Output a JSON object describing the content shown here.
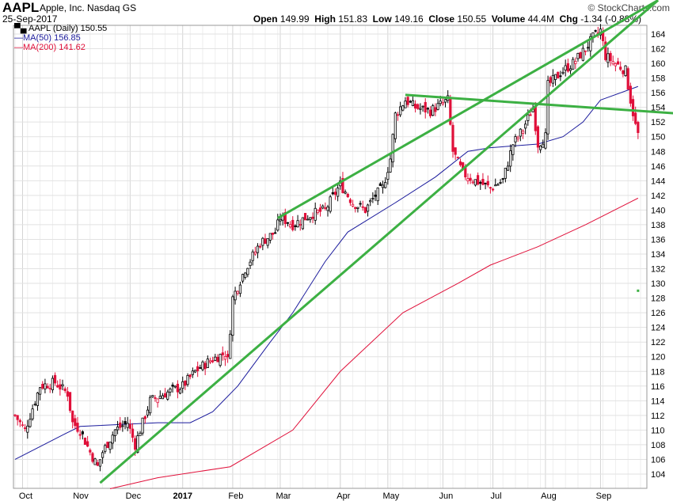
{
  "header": {
    "symbol": "AAPL",
    "company": "Apple, Inc. Nasdaq GS",
    "date": "25-Sep-2017",
    "brand": "© StockCharts.com",
    "open_label": "Open",
    "open": "149.99",
    "high_label": "High",
    "high": "151.83",
    "low_label": "Low",
    "low": "149.16",
    "close_label": "Close",
    "close": "150.55",
    "volume_label": "Volume",
    "volume": "44.4M",
    "chg_label": "Chg",
    "chg": "-1.34 (-0.88%)"
  },
  "legend": {
    "price": "AAPL (Daily) 150.55",
    "ma50": "MA(50) 156.85",
    "ma200": "MA(200) 141.62"
  },
  "colors": {
    "up": "#000000",
    "down": "#e0103a",
    "ma50": "#1a1a9c",
    "ma200": "#e0103a",
    "trend": "#3cb043",
    "grid": "#e2e2e2"
  },
  "chart_data": {
    "type": "candlestick",
    "title": "AAPL (Daily)",
    "ylim": [
      102,
      165.2
    ],
    "y_ticks": [
      104,
      106,
      108,
      110,
      112,
      114,
      116,
      118,
      120,
      122,
      124,
      126,
      128,
      130,
      132,
      134,
      136,
      138,
      140,
      142,
      144,
      146,
      148,
      150,
      152,
      154,
      156,
      158,
      160,
      162,
      164
    ],
    "x_tick_labels": [
      {
        "label": "Oct",
        "day": 3
      },
      {
        "label": "Nov",
        "day": 25
      },
      {
        "label": "Dec",
        "day": 46
      },
      {
        "label": "2017",
        "day": 67
      },
      {
        "label": "Feb",
        "day": 87
      },
      {
        "label": "Mar",
        "day": 106
      },
      {
        "label": "Apr",
        "day": 130
      },
      {
        "label": "May",
        "day": 149
      },
      {
        "label": "Jun",
        "day": 171
      },
      {
        "label": "Jul",
        "day": 191
      },
      {
        "label": "Aug",
        "day": 212
      },
      {
        "label": "Sep",
        "day": 234
      }
    ],
    "trading_days": 250,
    "close_keypoints": [
      [
        0,
        112
      ],
      [
        4,
        110
      ],
      [
        10,
        116
      ],
      [
        16,
        116.5
      ],
      [
        21,
        115
      ],
      [
        23,
        111
      ],
      [
        26,
        110
      ],
      [
        30,
        107
      ],
      [
        33,
        105
      ],
      [
        35,
        107
      ],
      [
        40,
        110
      ],
      [
        45,
        111
      ],
      [
        48,
        108
      ],
      [
        51,
        111
      ],
      [
        54,
        114
      ],
      [
        60,
        115
      ],
      [
        67,
        116
      ],
      [
        72,
        118
      ],
      [
        78,
        119.5
      ],
      [
        84,
        120.5
      ],
      [
        85,
        119.5
      ],
      [
        87,
        128
      ],
      [
        92,
        132
      ],
      [
        98,
        135.5
      ],
      [
        104,
        137
      ],
      [
        106,
        139
      ],
      [
        111,
        138
      ],
      [
        119,
        139.5
      ],
      [
        124,
        140
      ],
      [
        130,
        143.5
      ],
      [
        135,
        141
      ],
      [
        140,
        140
      ],
      [
        144,
        142
      ],
      [
        147,
        143
      ],
      [
        150,
        147
      ],
      [
        152,
        153
      ],
      [
        156,
        155
      ],
      [
        160,
        154
      ],
      [
        166,
        153.5
      ],
      [
        173,
        155
      ],
      [
        175,
        148
      ],
      [
        179,
        145
      ],
      [
        184,
        144
      ],
      [
        190,
        143
      ],
      [
        195,
        144
      ],
      [
        199,
        149
      ],
      [
        203,
        151
      ],
      [
        207,
        154
      ],
      [
        209,
        149
      ],
      [
        212,
        150
      ],
      [
        213,
        157
      ],
      [
        219,
        159
      ],
      [
        223,
        160
      ],
      [
        228,
        162
      ],
      [
        231,
        163.5
      ],
      [
        234,
        164.5
      ],
      [
        236,
        161
      ],
      [
        240,
        160
      ],
      [
        244,
        159
      ],
      [
        246,
        155
      ],
      [
        248,
        151.5
      ],
      [
        249,
        150.55
      ]
    ],
    "ma50_keypoints": [
      [
        0,
        106
      ],
      [
        20,
        109.5
      ],
      [
        26,
        110.5
      ],
      [
        57,
        111
      ],
      [
        70,
        111
      ],
      [
        79,
        112.5
      ],
      [
        89,
        116
      ],
      [
        102,
        122
      ],
      [
        111,
        126
      ],
      [
        124,
        133
      ],
      [
        133,
        137
      ],
      [
        152,
        141
      ],
      [
        168,
        144.5
      ],
      [
        181,
        148
      ],
      [
        190,
        148.5
      ],
      [
        209,
        149
      ],
      [
        219,
        150
      ],
      [
        227,
        152
      ],
      [
        234,
        155
      ],
      [
        249,
        156.85
      ]
    ],
    "ma200_keypoints": [
      [
        38,
        102
      ],
      [
        57,
        103.5
      ],
      [
        86,
        105
      ],
      [
        111,
        110
      ],
      [
        130,
        118
      ],
      [
        155,
        126
      ],
      [
        177,
        130
      ],
      [
        190,
        132.5
      ],
      [
        209,
        135
      ],
      [
        228,
        138
      ],
      [
        249,
        141.62
      ]
    ],
    "trendlines": [
      {
        "from": [
          34,
          102.8
        ],
        "to": [
          257,
          168.6
        ]
      },
      {
        "from": [
          105,
          138.9
        ],
        "to": [
          257,
          168.6
        ]
      },
      {
        "from": [
          156,
          155.7
        ],
        "to": [
          263,
          153.2
        ]
      }
    ],
    "marker": {
      "day": 249,
      "price": 129
    }
  }
}
